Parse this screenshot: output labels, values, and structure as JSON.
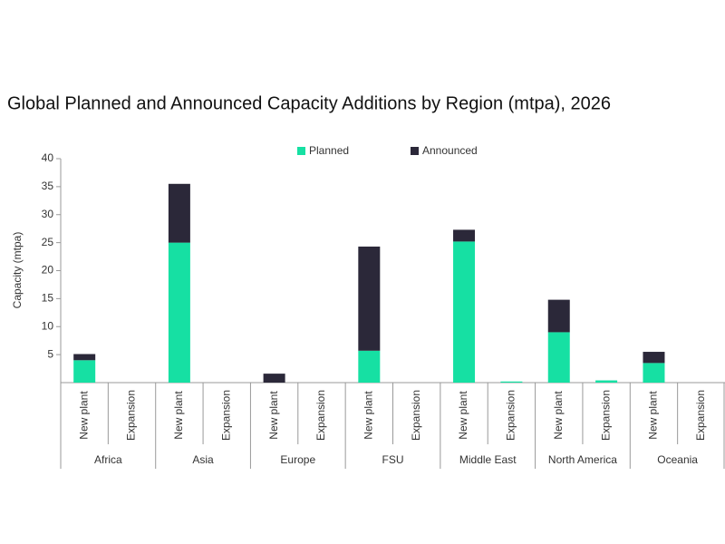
{
  "chart_data": {
    "type": "stacked_bar",
    "title": "Global Planned and Announced Capacity Additions by Region (mtpa), 2026",
    "ylabel": "Capacity (mtpa)",
    "groups": [
      "Africa",
      "Asia",
      "Europe",
      "FSU",
      "Middle East",
      "North America",
      "Oceania"
    ],
    "categories": [
      "New plant",
      "Expansion",
      "New plant",
      "Expansion",
      "New plant",
      "Expansion",
      "New plant",
      "Expansion",
      "New plant",
      "Expansion",
      "New plant",
      "Expansion",
      "New plant",
      "Expansion"
    ],
    "series": [
      {
        "name": "Planned",
        "color": "#16e0a3",
        "values": [
          4,
          0,
          25,
          0,
          0,
          0,
          5.7,
          0,
          25.2,
          0.2,
          9,
          0.4,
          3.5,
          0
        ]
      },
      {
        "name": "Announced",
        "color": "#2b2839",
        "values": [
          1.1,
          0,
          10.5,
          0,
          1.6,
          0,
          18.6,
          0,
          2.1,
          0,
          5.8,
          0,
          2,
          0
        ]
      }
    ],
    "ylim": [
      0,
      40
    ],
    "yticks": [
      5,
      10,
      15,
      20,
      25,
      30,
      35,
      40
    ],
    "legend": "top"
  }
}
